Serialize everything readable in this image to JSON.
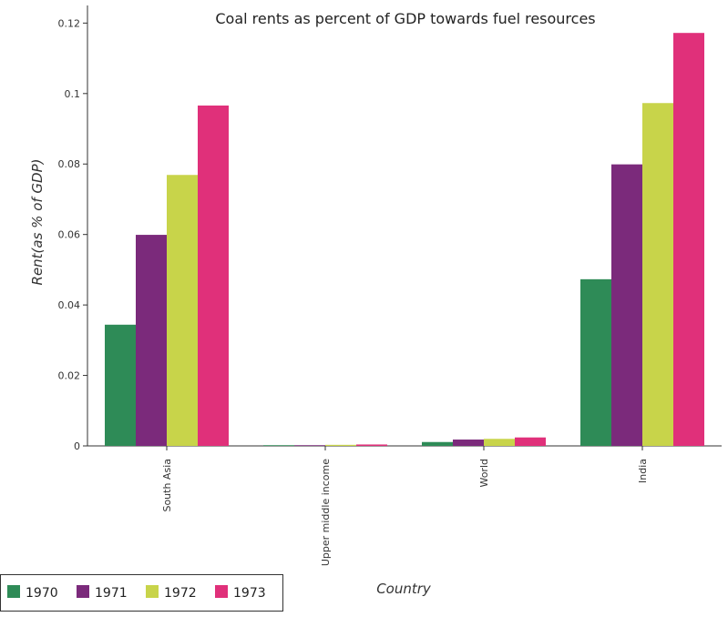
{
  "chart_data": {
    "type": "bar",
    "title": "Coal rents as percent of GDP towards fuel resources",
    "xlabel": "Country",
    "ylabel": "Rent(as % of GDP)",
    "categories": [
      "South Asia",
      "Upper middle income",
      "World",
      "India"
    ],
    "series": [
      {
        "name": "1970",
        "color": "#2e8b57",
        "values": [
          0.0344,
          0.0002,
          0.0011,
          0.0473
        ]
      },
      {
        "name": "1971",
        "color": "#7b2a7b",
        "values": [
          0.0599,
          0.0002,
          0.0018,
          0.0799
        ]
      },
      {
        "name": "1972",
        "color": "#c8d44a",
        "values": [
          0.0769,
          0.0003,
          0.002,
          0.0973
        ]
      },
      {
        "name": "1973",
        "color": "#e0307a",
        "values": [
          0.0966,
          0.0004,
          0.0024,
          0.1172
        ]
      }
    ],
    "ylim": [
      0,
      0.125
    ],
    "yticks": [
      0,
      0.02,
      0.04,
      0.06,
      0.08,
      0.1,
      0.12
    ],
    "ytick_labels": [
      "0",
      "0.02",
      "0.04",
      "0.06",
      "0.08",
      "0.1",
      "0.12"
    ],
    "legend_placement": "bottom-left",
    "grid": false
  }
}
